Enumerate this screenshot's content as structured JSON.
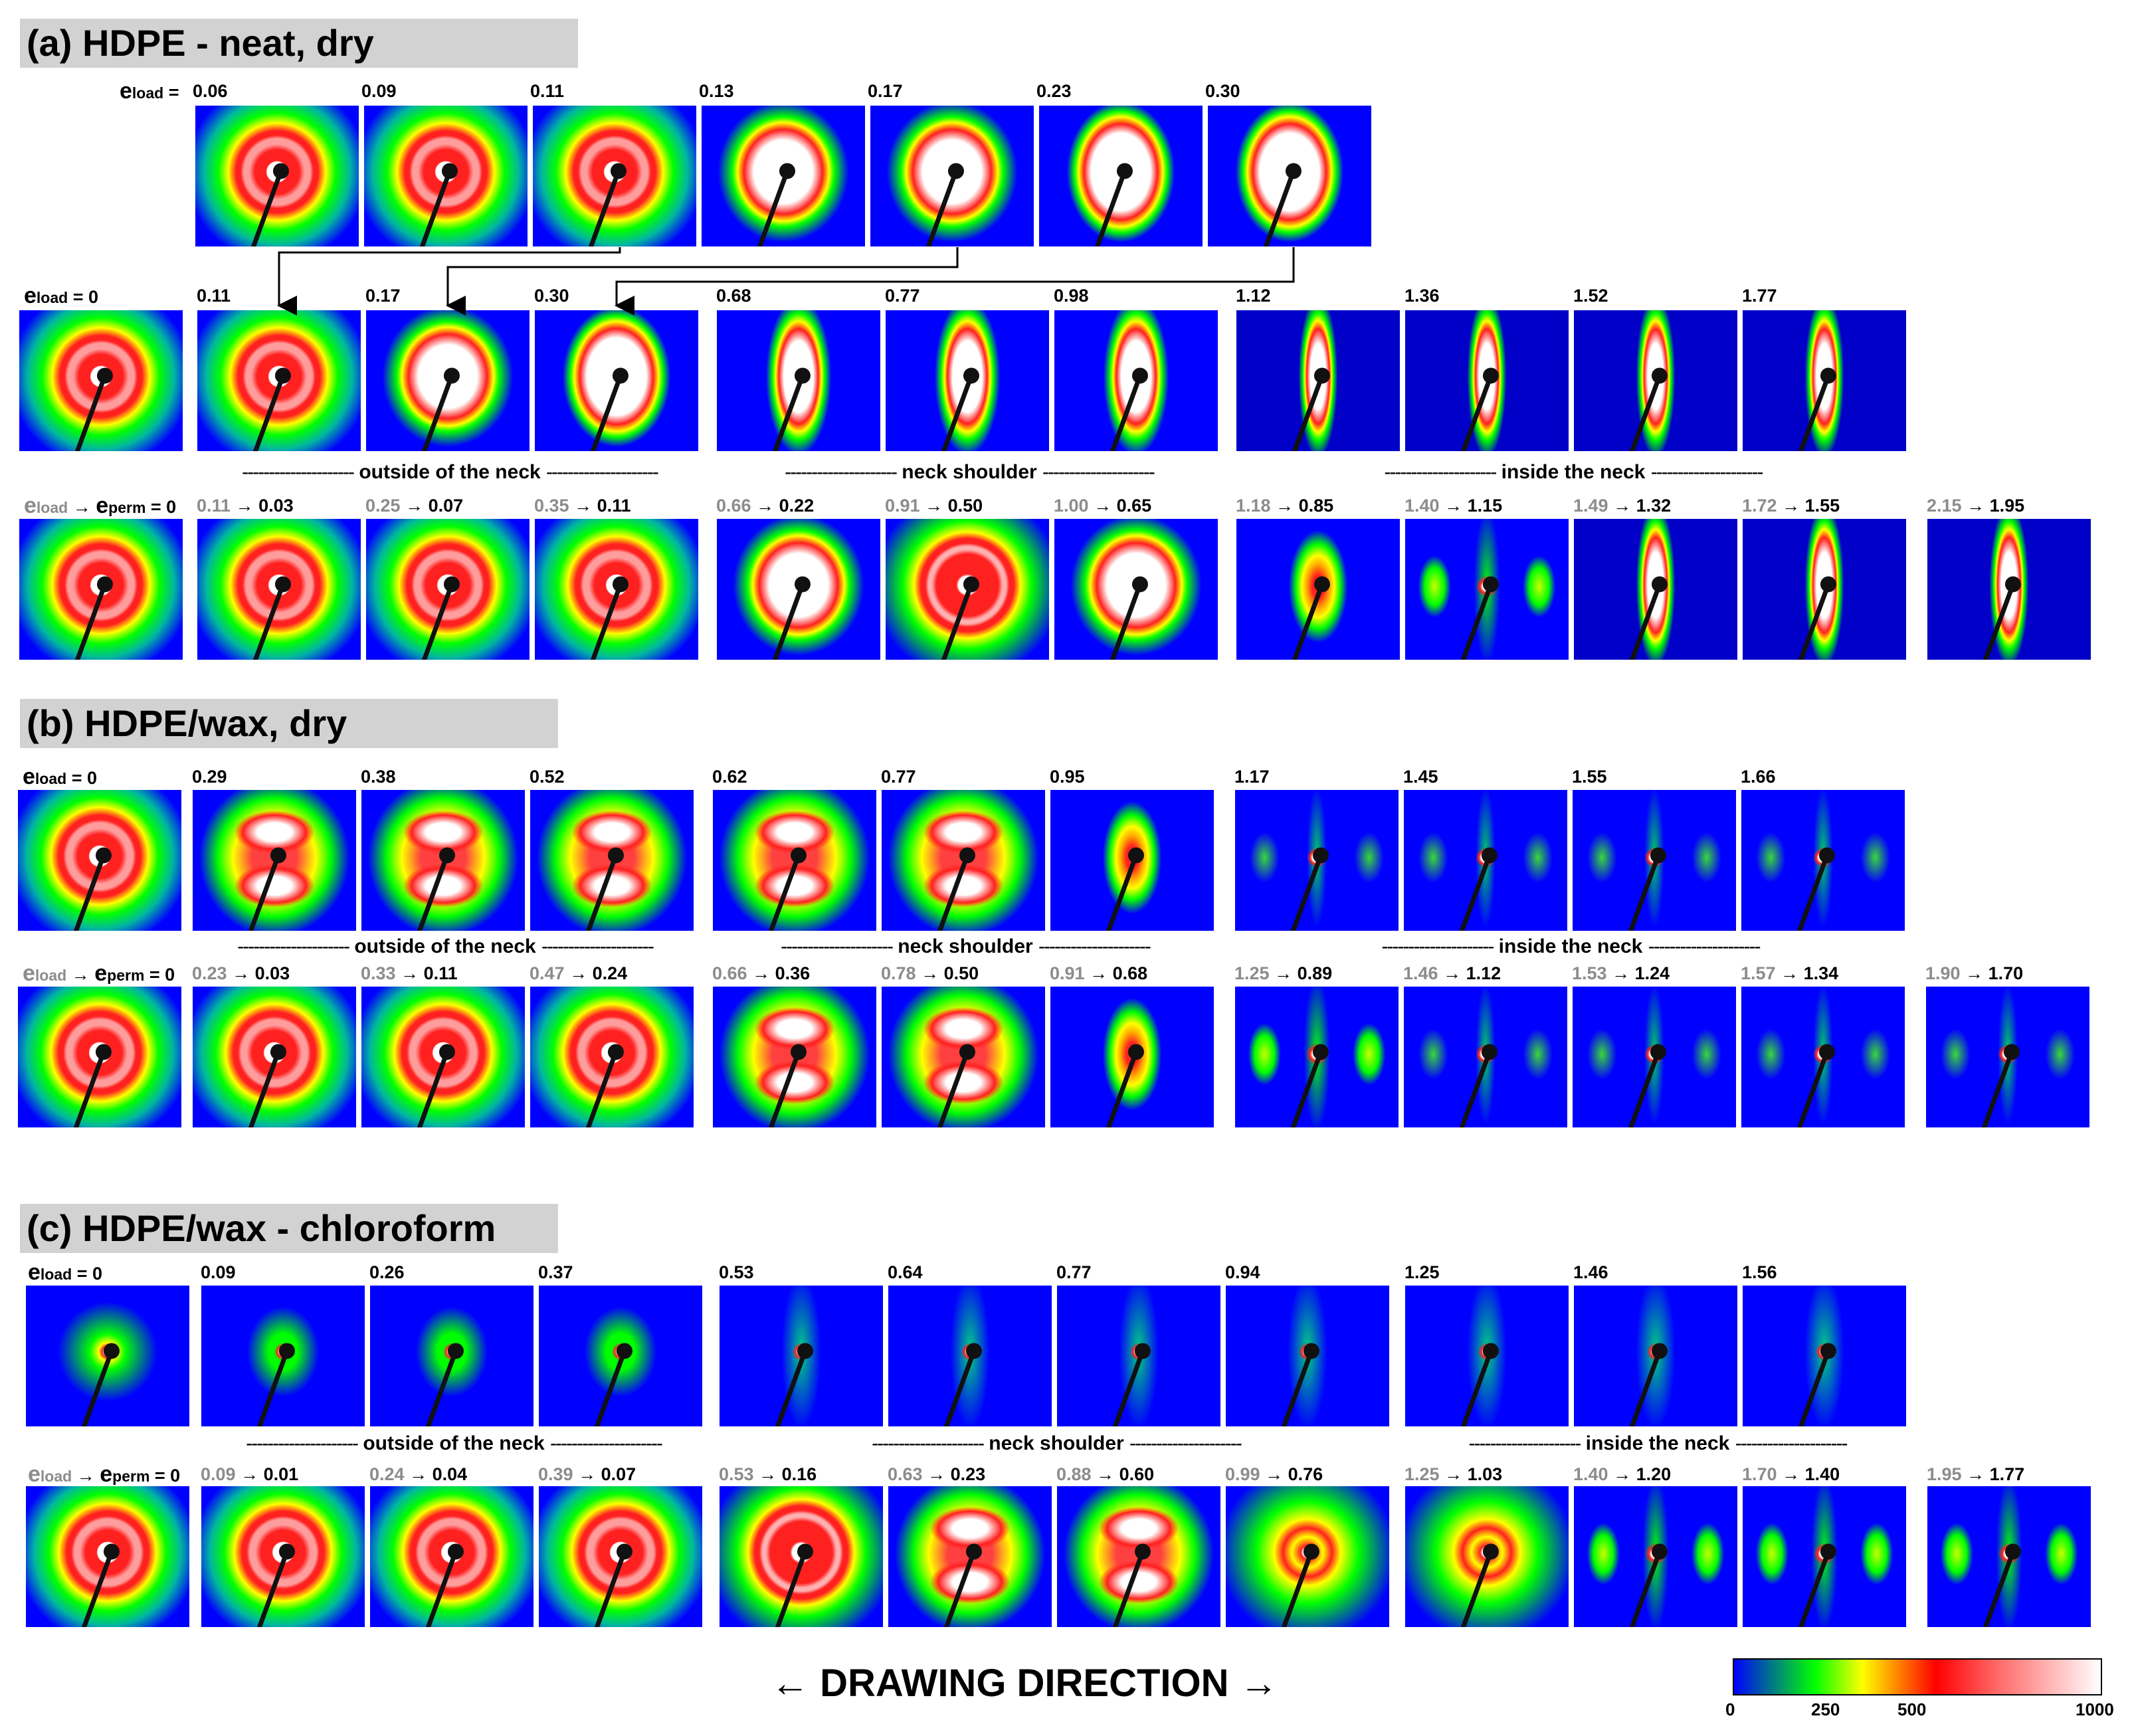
{
  "panels": [
    {
      "id": "a",
      "title": "(a) HDPE - neat, dry"
    },
    {
      "id": "b",
      "title": "(b) HDPE/wax, dry"
    },
    {
      "id": "c",
      "title": "(c) HDPE/wax - chloroform"
    }
  ],
  "labels": {
    "eload_eq": "e",
    "load": "load",
    "perm": "perm",
    "arrow": "→",
    "eq_zero": " = 0",
    "eq": " ="
  },
  "rows": {
    "a1": [
      "0.06",
      "0.09",
      "0.11",
      "0.13",
      "0.17",
      "0.23",
      "0.30"
    ],
    "a2": [
      "0",
      "0.11",
      "0.17",
      "0.30",
      "0.68",
      "0.77",
      "0.98",
      "1.12",
      "1.36",
      "1.52",
      "1.77"
    ],
    "a3": [
      [
        "0.11",
        "0.03"
      ],
      [
        "0.25",
        "0.07"
      ],
      [
        "0.35",
        "0.11"
      ],
      [
        "0.66",
        "0.22"
      ],
      [
        "0.91",
        "0.50"
      ],
      [
        "1.00",
        "0.65"
      ],
      [
        "1.18",
        "0.85"
      ],
      [
        "1.40",
        "1.15"
      ],
      [
        "1.49",
        "1.32"
      ],
      [
        "1.72",
        "1.55"
      ],
      [
        "2.15",
        "1.95"
      ]
    ],
    "b1": [
      "0",
      "0.29",
      "0.38",
      "0.52",
      "0.62",
      "0.77",
      "0.95",
      "1.17",
      "1.45",
      "1.55",
      "1.66"
    ],
    "b2": [
      [
        "0.23",
        "0.03"
      ],
      [
        "0.33",
        "0.11"
      ],
      [
        "0.47",
        "0.24"
      ],
      [
        "0.66",
        "0.36"
      ],
      [
        "0.78",
        "0.50"
      ],
      [
        "0.91",
        "0.68"
      ],
      [
        "1.25",
        "0.89"
      ],
      [
        "1.46",
        "1.12"
      ],
      [
        "1.53",
        "1.24"
      ],
      [
        "1.57",
        "1.34"
      ],
      [
        "1.90",
        "1.70"
      ]
    ],
    "c1": [
      "0",
      "0.09",
      "0.26",
      "0.37",
      "0.53",
      "0.64",
      "0.77",
      "0.94",
      "1.25",
      "1.46",
      "1.56"
    ],
    "c2": [
      [
        "0.09",
        "0.01"
      ],
      [
        "0.24",
        "0.04"
      ],
      [
        "0.39",
        "0.07"
      ],
      [
        "0.53",
        "0.16"
      ],
      [
        "0.63",
        "0.23"
      ],
      [
        "0.88",
        "0.60"
      ],
      [
        "0.99",
        "0.76"
      ],
      [
        "1.25",
        "1.03"
      ],
      [
        "1.40",
        "1.20"
      ],
      [
        "1.70",
        "1.40"
      ],
      [
        "1.95",
        "1.77"
      ]
    ]
  },
  "separators": {
    "a": [
      "outside of the neck",
      "neck shoulder",
      "inside the neck"
    ],
    "b": [
      "outside of the neck",
      "neck shoulder",
      "inside the neck"
    ],
    "c": [
      "outside of  the neck",
      "neck shoulder",
      "inside the neck"
    ]
  },
  "drawing_direction": "← DRAWING DIRECTION →",
  "colorbar": {
    "ticks": [
      "0",
      "250",
      "500",
      "1000"
    ]
  }
}
